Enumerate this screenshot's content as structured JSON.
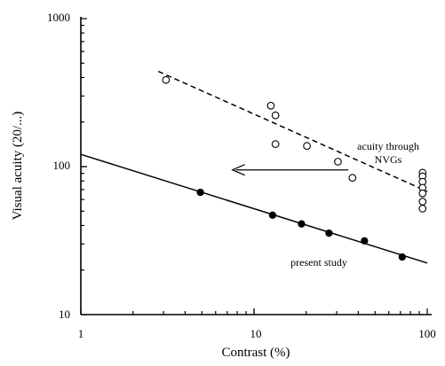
{
  "chart_data": {
    "type": "scatter",
    "xlabel": "Contrast (%)",
    "ylabel": "Visual acuity (20/...)",
    "xscale": "log",
    "yscale": "log",
    "xlim": [
      1,
      100
    ],
    "ylim": [
      10,
      1000
    ],
    "x_ticks": [
      {
        "value": 1,
        "label": "1"
      },
      {
        "value": 10,
        "label": "10"
      },
      {
        "value": 100,
        "label": "100"
      }
    ],
    "y_ticks": [
      {
        "value": 10,
        "label": "10"
      },
      {
        "value": 100,
        "label": "100"
      },
      {
        "value": 1000,
        "label": "1000"
      }
    ],
    "grid": false,
    "series": [
      {
        "marker": "open-circle",
        "line": "dashed",
        "points": [
          {
            "x": 3.1,
            "y": 385
          },
          {
            "x": 12.5,
            "y": 258
          },
          {
            "x": 13.3,
            "y": 222
          },
          {
            "x": 13.3,
            "y": 142
          },
          {
            "x": 20.2,
            "y": 138
          },
          {
            "x": 30.5,
            "y": 108
          },
          {
            "x": 37.0,
            "y": 84
          },
          {
            "x": 94,
            "y": 91
          },
          {
            "x": 94,
            "y": 86
          },
          {
            "x": 94,
            "y": 79
          },
          {
            "x": 94,
            "y": 72
          },
          {
            "x": 94,
            "y": 66
          },
          {
            "x": 94,
            "y": 58
          },
          {
            "x": 94,
            "y": 52
          }
        ],
        "fit_line": [
          {
            "x": 2.8,
            "y": 440
          },
          {
            "x": 100,
            "y": 68
          }
        ]
      },
      {
        "marker": "filled-circle",
        "line": "solid",
        "points": [
          {
            "x": 4.9,
            "y": 67
          },
          {
            "x": 12.8,
            "y": 47
          },
          {
            "x": 18.8,
            "y": 41
          },
          {
            "x": 27.1,
            "y": 35.5
          },
          {
            "x": 43.4,
            "y": 31.5
          },
          {
            "x": 71.7,
            "y": 24.5
          }
        ],
        "fit_line": [
          {
            "x": 1,
            "y": 121
          },
          {
            "x": 100,
            "y": 22.3
          }
        ]
      }
    ],
    "annotations": [
      {
        "text_lines": [
          "acuity through",
          "NVGs"
        ],
        "x": 100,
        "y": 180
      },
      {
        "text_lines": [
          "present study"
        ],
        "x": 30,
        "y": 21
      },
      {
        "type": "arrow",
        "from": {
          "x": 35,
          "y": 95
        },
        "to": {
          "x": 7.5,
          "y": 95
        }
      }
    ]
  }
}
